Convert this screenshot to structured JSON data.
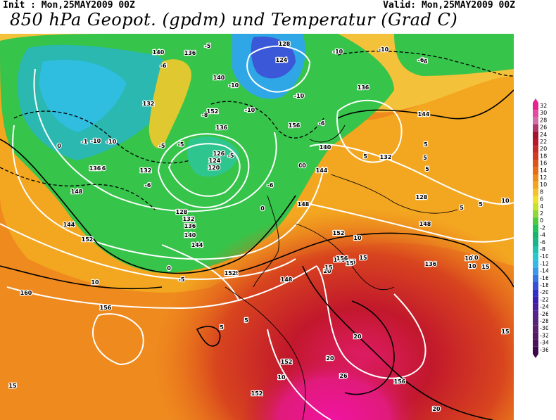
{
  "header": {
    "init": "Init : Mon,25MAY2009 00Z",
    "valid": "Valid: Mon,25MAY2009 00Z",
    "title": "850 hPa Geopot. (gpdm) und Temperatur (Grad C)"
  },
  "map": {
    "geopotential_labels": [
      "128",
      "124",
      "140",
      "136",
      "140",
      "132",
      "136",
      "126",
      "124",
      "120",
      "128",
      "132",
      "136",
      "140",
      "144",
      "136",
      "132",
      "140",
      "144",
      "148",
      "152",
      "148",
      "136",
      "144",
      "128",
      "132",
      "136",
      "140",
      "144",
      "148",
      "136",
      "152",
      "148",
      "152",
      "152",
      "156",
      "156",
      "160",
      "156",
      "152",
      "152",
      "156",
      "152"
    ],
    "temperature_labels": [
      "-5",
      "-6",
      "-10",
      "-10",
      "-10",
      "-6",
      "-10",
      "-10",
      "-6",
      "-6",
      "-5",
      "-8",
      "-10",
      "-1",
      "-10",
      "-5",
      "0",
      "-6",
      "0",
      "5",
      "-5",
      "-6",
      "0",
      "0",
      "5",
      "5",
      "5",
      "5",
      "10",
      "10",
      "10",
      "10",
      "10",
      "15",
      "10",
      "15",
      "15",
      "20",
      "15",
      "20",
      "20",
      "26",
      "20",
      "15",
      "5",
      "5",
      "10",
      "15",
      "15",
      "0",
      "-5",
      "5"
    ]
  },
  "legend": {
    "labels": [
      "32",
      "30",
      "28",
      "26",
      "24",
      "22",
      "20",
      "18",
      "16",
      "14",
      "12",
      "10",
      "8",
      "6",
      "4",
      "2",
      "0",
      "-2",
      "-4",
      "-6",
      "-8",
      "-10",
      "-12",
      "-14",
      "-16",
      "-18",
      "-20",
      "-22",
      "-24",
      "-26",
      "-28",
      "-30",
      "-32",
      "-34",
      "-36"
    ],
    "colors": [
      "#e6238e",
      "#e44a9e",
      "#d46ea6",
      "#b2356b",
      "#a3142e",
      "#b8172e",
      "#c72b28",
      "#d23b20",
      "#df5319",
      "#e86c17",
      "#f08a18",
      "#f4a51e",
      "#f6c12b",
      "#f0df2c",
      "#c7e22a",
      "#90d53a",
      "#4fca3b",
      "#22c25a",
      "#16b46f",
      "#1ab48b",
      "#1ec2ad",
      "#27c8cd",
      "#35b8e6",
      "#3a98e8",
      "#3a74e0",
      "#3850d8",
      "#3230c8",
      "#3a1fb2",
      "#4a1f9b",
      "#54248a",
      "#55277a",
      "#5a226e",
      "#561b63",
      "#4a135a",
      "#3c0a4c"
    ]
  }
}
